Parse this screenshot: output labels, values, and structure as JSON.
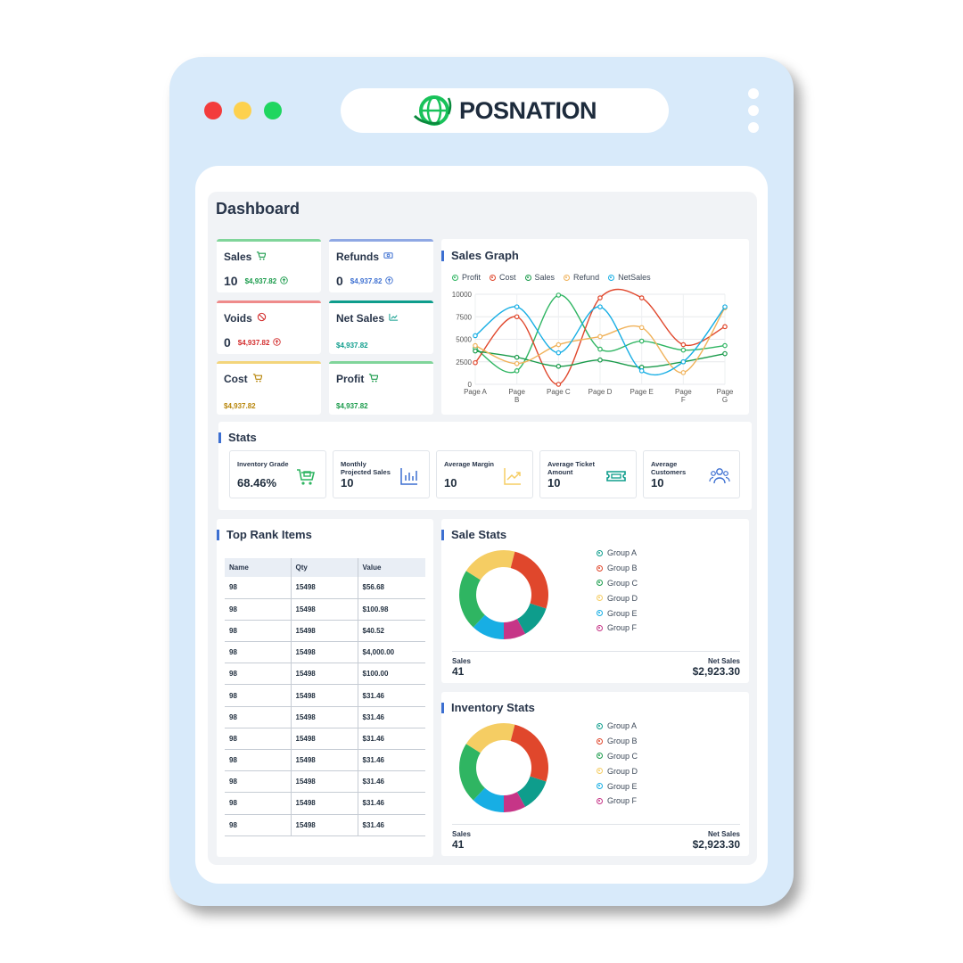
{
  "brand": {
    "name": "POSNATION"
  },
  "dashboard_title": "Dashboard",
  "colors": {
    "green": "#2fb562",
    "red": "#e0472c",
    "yellow": "#f5cd63",
    "teal": "#0e9d8c",
    "blue": "#3c6fd1",
    "cyan": "#17aee4",
    "magenta": "#c63587"
  },
  "metrics": [
    {
      "label": "Sales",
      "count": "10",
      "amount": "$4,937.82",
      "icon": "cart-icon",
      "color": "#80d59a",
      "amount_color": "#1a9b4b"
    },
    {
      "label": "Refunds",
      "count": "0",
      "amount": "$4,937.82",
      "icon": "cash-icon",
      "color": "#8fa8e4",
      "amount_color": "#3c6fd1"
    },
    {
      "label": "Voids",
      "count": "0",
      "amount": "$4,937.82",
      "icon": "ban-icon",
      "color": "#ef8b8b",
      "amount_color": "#d32f2f"
    },
    {
      "label": "Net Sales",
      "count": "",
      "amount": "$4,937.82",
      "icon": "trend-icon",
      "color": "#0e9d8c",
      "amount_color": "#0e9d8c"
    },
    {
      "label": "Cost",
      "count": "",
      "amount": "$4,937.82",
      "icon": "cart-icon",
      "color": "#f3d57b",
      "amount_color": "#b8860b"
    },
    {
      "label": "Profit",
      "count": "",
      "amount": "$4,937.82",
      "icon": "cart-icon",
      "color": "#80d59a",
      "amount_color": "#1a9b4b"
    }
  ],
  "sales_graph": {
    "title": "Sales Graph",
    "chart_data": {
      "type": "line",
      "categories": [
        "Page A",
        "Page B",
        "Page C",
        "Page D",
        "Page E",
        "Page F",
        "Page G"
      ],
      "ylim": [
        0,
        10000
      ],
      "yticks": [
        0,
        2500,
        5000,
        7500,
        10000
      ],
      "legend_position": "top",
      "grid": true,
      "series": [
        {
          "name": "Profit",
          "color": "#2fb562",
          "values": [
            4000,
            1500,
            9900,
            3900,
            4800,
            3800,
            4300
          ]
        },
        {
          "name": "Cost",
          "color": "#e0472c",
          "values": [
            2400,
            7500,
            0,
            9600,
            9600,
            4400,
            6400
          ]
        },
        {
          "name": "Sales",
          "color": "#1a9b4b",
          "values": [
            3700,
            3000,
            2000,
            2700,
            1900,
            2500,
            3400
          ]
        },
        {
          "name": "Refund",
          "color": "#f0b25a",
          "values": [
            4300,
            2300,
            4400,
            5300,
            6300,
            1300,
            8500
          ]
        },
        {
          "name": "NetSales",
          "color": "#17aee4",
          "values": [
            5400,
            8600,
            3500,
            8600,
            1500,
            2500,
            8600
          ]
        }
      ]
    }
  },
  "stats": {
    "title": "Stats",
    "cards": [
      {
        "label": "Inventory Grade",
        "value": "68.46%",
        "icon": "cart-box-icon",
        "color": "#2fb562"
      },
      {
        "label": "Monthly Projected Sales",
        "value": "10",
        "icon": "bar-chart-icon",
        "color": "#3c6fd1"
      },
      {
        "label": "Average Margin",
        "value": "10",
        "icon": "trend-up-icon",
        "color": "#f5cd63"
      },
      {
        "label": "Average Ticket Amount",
        "value": "10",
        "icon": "ticket-icon",
        "color": "#0e9d8c"
      },
      {
        "label": "Average Customers",
        "value": "10",
        "icon": "users-icon",
        "color": "#3c6fd1"
      }
    ]
  },
  "top_rank": {
    "title": "Top Rank Items",
    "headers": [
      "Name",
      "Qty",
      "Value"
    ],
    "rows": [
      [
        "98",
        "15498",
        "$56.68"
      ],
      [
        "98",
        "15498",
        "$100.98"
      ],
      [
        "98",
        "15498",
        "$40.52"
      ],
      [
        "98",
        "15498",
        "$4,000.00"
      ],
      [
        "98",
        "15498",
        "$100.00"
      ],
      [
        "98",
        "15498",
        "$31.46"
      ],
      [
        "98",
        "15498",
        "$31.46"
      ],
      [
        "98",
        "15498",
        "$31.46"
      ],
      [
        "98",
        "15498",
        "$31.46"
      ],
      [
        "98",
        "15498",
        "$31.46"
      ],
      [
        "98",
        "15498",
        "$31.46"
      ],
      [
        "98",
        "15498",
        "$31.46"
      ]
    ]
  },
  "sale_stats": {
    "title": "Sale Stats",
    "sales_label": "Sales",
    "sales_value": "41",
    "net_label": "Net Sales",
    "net_value": "$2,923.30",
    "chart_data": {
      "type": "pie",
      "donut": true,
      "legend_position": "right",
      "slices": [
        {
          "name": "Group A",
          "value": 12,
          "color": "#0e9d8c"
        },
        {
          "name": "Group B",
          "value": 8,
          "color": "#c63587"
        },
        {
          "name": "Group C",
          "value": 12,
          "color": "#17aee4"
        },
        {
          "name": "Group D",
          "value": 22,
          "color": "#2fb562"
        },
        {
          "name": "Group E",
          "value": 20,
          "color": "#f5cd63"
        },
        {
          "name": "Group F",
          "value": 26,
          "color": "#e0472c"
        }
      ],
      "legend": [
        {
          "name": "Group A",
          "color": "#0e9d8c"
        },
        {
          "name": "Group B",
          "color": "#e0472c"
        },
        {
          "name": "Group C",
          "color": "#1a9b4b"
        },
        {
          "name": "Group D",
          "color": "#f5cd63"
        },
        {
          "name": "Group E",
          "color": "#17aee4"
        },
        {
          "name": "Group F",
          "color": "#c63587"
        }
      ]
    }
  },
  "inventory_stats": {
    "title": "Inventory Stats",
    "sales_label": "Sales",
    "sales_value": "41",
    "net_label": "Net Sales",
    "net_value": "$2,923.30",
    "chart_data": {
      "type": "pie",
      "donut": true,
      "legend_position": "right",
      "slices": [
        {
          "name": "Group A",
          "value": 12,
          "color": "#0e9d8c"
        },
        {
          "name": "Group B",
          "value": 8,
          "color": "#c63587"
        },
        {
          "name": "Group C",
          "value": 12,
          "color": "#17aee4"
        },
        {
          "name": "Group D",
          "value": 22,
          "color": "#2fb562"
        },
        {
          "name": "Group E",
          "value": 20,
          "color": "#f5cd63"
        },
        {
          "name": "Group F",
          "value": 26,
          "color": "#e0472c"
        }
      ],
      "legend": [
        {
          "name": "Group A",
          "color": "#0e9d8c"
        },
        {
          "name": "Group B",
          "color": "#e0472c"
        },
        {
          "name": "Group C",
          "color": "#1a9b4b"
        },
        {
          "name": "Group D",
          "color": "#f5cd63"
        },
        {
          "name": "Group E",
          "color": "#17aee4"
        },
        {
          "name": "Group F",
          "color": "#c63587"
        }
      ]
    }
  }
}
